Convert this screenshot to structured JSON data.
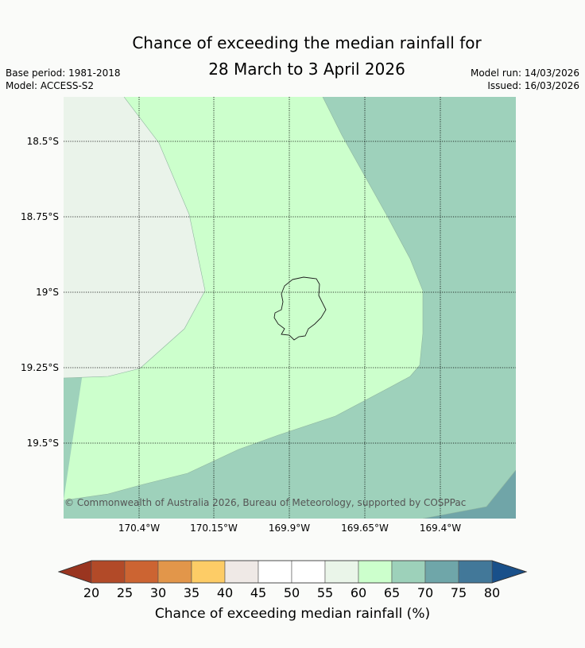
{
  "title_line1": "Chance of exceeding the median rainfall for",
  "title_line2": "28 March to 3 April 2026",
  "base_period": "Base period: 1981-2018",
  "model": "Model: ACCESS-S2",
  "model_run": "Model run: 14/03/2026",
  "issued": "Issued: 16/03/2026",
  "lat_labels": [
    "18.5°S",
    "18.75°S",
    "19°S",
    "19.25°S",
    "19.5°S"
  ],
  "lon_labels": [
    "170.4°W",
    "170.15°W",
    "169.9°W",
    "169.65°W",
    "169.4°W"
  ],
  "copyright": "© Commonwealth of Australia 2026, Bureau of Meteorology, supported by COSPPac",
  "colorbar": {
    "ticks": [
      "20",
      "25",
      "30",
      "35",
      "40",
      "45",
      "50",
      "55",
      "60",
      "65",
      "70",
      "75",
      "80"
    ],
    "colors": [
      "#b24a28",
      "#cc6432",
      "#e2964a",
      "#fdcc66",
      "#efe9e6",
      "#ffffff",
      "#ffffff",
      "#eaf5e9",
      "#ccffcc",
      "#9dd1ba",
      "#6fa6a9",
      "#427899"
    ],
    "under_color": "#9a3520",
    "over_color": "#19508a",
    "label": "Chance of exceeding median rainfall (%)"
  },
  "legend_region_colors": {
    "40-45": "#eaf3ea",
    "60-65": "#ccffcc",
    "65-70": "#9dd1ba",
    "70-75": "#6fa6a9"
  }
}
